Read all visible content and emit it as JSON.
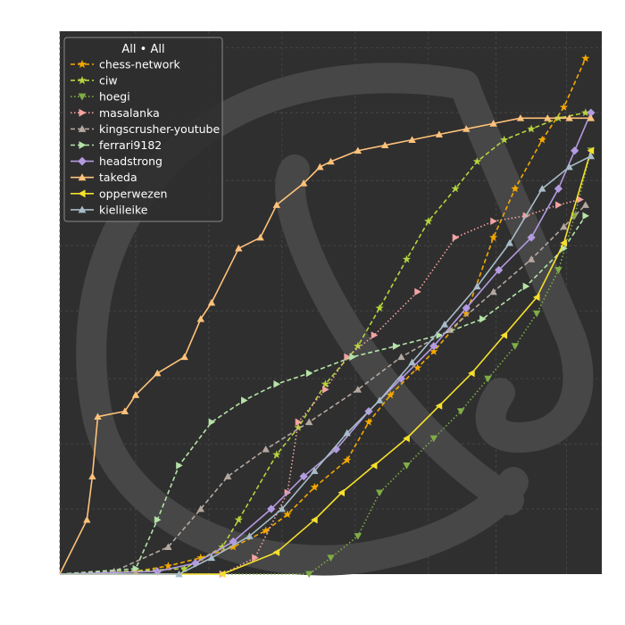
{
  "chart_data": {
    "type": "line",
    "title": "",
    "xlabel": "",
    "ylabel": "",
    "xlim": [
      0,
      100
    ],
    "ylim": [
      0,
      100
    ],
    "grid": true,
    "legend": {
      "title": "All • All",
      "placement": "top-left"
    },
    "colors": {
      "plot_background": "#2f2f2f",
      "grid": "#4a4a4a",
      "watermark": "#474747"
    },
    "series": [
      {
        "name": "chess-network",
        "color": "#f5a800",
        "marker": "star",
        "dash": "dashed",
        "x": [
          0,
          14,
          20,
          26,
          32,
          38,
          42,
          47,
          53,
          57,
          61,
          66,
          69,
          75,
          80,
          84,
          89,
          93,
          97
        ],
        "y": [
          0,
          0.5,
          1.5,
          3,
          5,
          8,
          11,
          16,
          21,
          28,
          33,
          38,
          41,
          48,
          62,
          71,
          80,
          86,
          95
        ]
      },
      {
        "name": "ciw",
        "color": "#b5d33d",
        "marker": "star",
        "dash": "dashed",
        "x": [
          0,
          23,
          30,
          33,
          40,
          44,
          49,
          55,
          59,
          64,
          68,
          73,
          77,
          82,
          87,
          92,
          97
        ],
        "y": [
          0,
          1,
          5,
          10,
          22,
          27,
          35,
          42,
          49,
          58,
          65,
          71,
          76,
          80,
          82,
          84,
          85
        ]
      },
      {
        "name": "hoegi",
        "color": "#7fad46",
        "marker": "triangle-down",
        "dash": "dotted",
        "x": [
          0,
          46,
          50,
          55,
          59,
          64,
          69,
          74,
          79,
          84,
          88,
          92,
          95,
          98
        ],
        "y": [
          0,
          0,
          3,
          7,
          15,
          20,
          25,
          30,
          36,
          42,
          48,
          56,
          66,
          78
        ]
      },
      {
        "name": "masalanka",
        "color": "#f4a3a3",
        "marker": "triangle-right",
        "dash": "dotted",
        "x": [
          0,
          30,
          36,
          42,
          44,
          49,
          53,
          58,
          66,
          73,
          80,
          86,
          92,
          96
        ],
        "y": [
          0,
          0,
          3,
          15,
          28,
          34,
          40,
          44,
          52,
          62,
          65,
          66,
          68,
          69
        ]
      },
      {
        "name": "kingscrusher-youtube",
        "color": "#b5a8a0",
        "marker": "triangle-up",
        "dash": "dashed",
        "x": [
          0,
          10,
          20,
          26,
          31,
          38,
          46,
          55,
          63,
          72,
          80,
          87,
          93,
          97
        ],
        "y": [
          0,
          0.5,
          5,
          12,
          18,
          23,
          28,
          34,
          40,
          45,
          52,
          58,
          64,
          68
        ]
      },
      {
        "name": "ferrari9182",
        "color": "#b5e3a8",
        "marker": "triangle-right",
        "dash": "dashed",
        "x": [
          0,
          14,
          18,
          22,
          28,
          34,
          40,
          46,
          54,
          62,
          70,
          78,
          86,
          93,
          97
        ],
        "y": [
          0,
          1,
          10,
          20,
          28,
          32,
          35,
          37,
          40,
          42,
          44,
          47,
          53,
          60,
          66
        ]
      },
      {
        "name": "headstrong",
        "color": "#b39be0",
        "marker": "diamond",
        "dash": "solid",
        "x": [
          0,
          18,
          25,
          32,
          39,
          45,
          51,
          57,
          63,
          69,
          75,
          81,
          87,
          92,
          95,
          98
        ],
        "y": [
          0,
          0.5,
          2,
          6,
          12,
          18,
          23,
          30,
          36,
          42,
          49,
          56,
          62,
          71,
          78,
          85
        ]
      },
      {
        "name": "takeda",
        "color": "#ffc27a",
        "marker": "triangle-up",
        "dash": "solid",
        "x": [
          0,
          5,
          6,
          7,
          12,
          14,
          18,
          23,
          26,
          28,
          33,
          37,
          40,
          45,
          48,
          50,
          55,
          60,
          65,
          70,
          75,
          80,
          85,
          90,
          94,
          98
        ],
        "y": [
          0,
          10,
          18,
          29,
          30,
          33,
          37,
          40,
          47,
          50,
          60,
          62,
          68,
          72,
          75,
          76,
          78,
          79,
          80,
          81,
          82,
          83,
          84,
          84,
          84,
          84
        ]
      },
      {
        "name": "opperwezen",
        "color": "#f5e02c",
        "marker": "triangle-left",
        "dash": "solid",
        "x": [
          0,
          30,
          40,
          47,
          52,
          58,
          64,
          70,
          76,
          82,
          88,
          93,
          98
        ],
        "y": [
          0,
          0,
          4,
          10,
          15,
          20,
          25,
          31,
          37,
          44,
          51,
          61,
          78
        ]
      },
      {
        "name": "kielileike",
        "color": "#a8bcc8",
        "marker": "triangle-up",
        "dash": "solid",
        "x": [
          0,
          22,
          28,
          35,
          41,
          47,
          53,
          59,
          65,
          71,
          77,
          83,
          89,
          94,
          98
        ],
        "y": [
          0,
          0,
          3,
          7,
          12,
          19,
          26,
          32,
          39,
          46,
          53,
          61,
          71,
          75,
          77
        ]
      }
    ]
  }
}
